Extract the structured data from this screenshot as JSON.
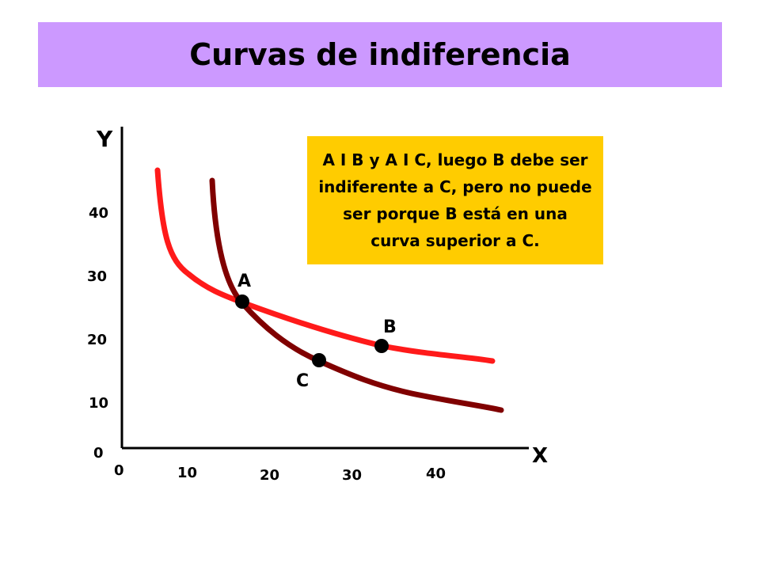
{
  "title": "Curvas de indiferencia",
  "axes": {
    "x_label": "X",
    "y_label": "Y",
    "x_ticks": [
      "0",
      "10",
      "20",
      "30",
      "40"
    ],
    "y_ticks": [
      "0",
      "10",
      "20",
      "30",
      "40"
    ]
  },
  "curves": [
    {
      "id": "curve-b",
      "color": "#ff1a1a"
    },
    {
      "id": "curve-c",
      "color": "#800000"
    }
  ],
  "points": {
    "A": "A",
    "B": "B",
    "C": "C"
  },
  "note": "A I B y A I C, luego B debe ser indiferente a C, pero no puede ser porque B está en una curva superior a C.",
  "colors": {
    "title_bg": "#cc99ff",
    "note_bg": "#ffcc00"
  }
}
